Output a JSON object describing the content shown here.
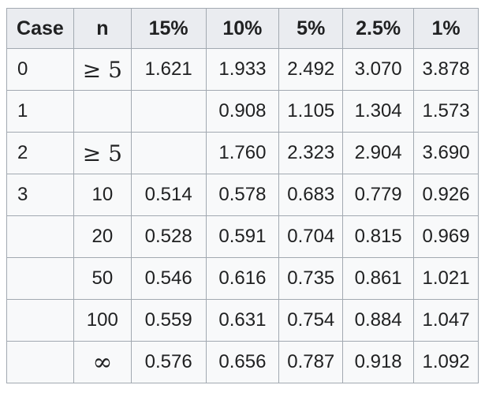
{
  "colors": {
    "border": "#a2a9b1",
    "header_bg": "#eaecf0",
    "cell_bg": "#f8f9fa",
    "text": "#202122",
    "page_bg": "#ffffff"
  },
  "table": {
    "columns": [
      "Case",
      "n",
      "15%",
      "10%",
      "5%",
      "2.5%",
      "1%"
    ],
    "rows": [
      [
        "0",
        "≥ 5",
        "1.621",
        "1.933",
        "2.492",
        "3.070",
        "3.878"
      ],
      [
        "1",
        "",
        "",
        "0.908",
        "1.105",
        "1.304",
        "1.573"
      ],
      [
        "2",
        "≥ 5",
        "",
        "1.760",
        "2.323",
        "2.904",
        "3.690"
      ],
      [
        "3",
        "10",
        "0.514",
        "0.578",
        "0.683",
        "0.779",
        "0.926"
      ],
      [
        "",
        "20",
        "0.528",
        "0.591",
        "0.704",
        "0.815",
        "0.969"
      ],
      [
        "",
        "50",
        "0.546",
        "0.616",
        "0.735",
        "0.861",
        "1.021"
      ],
      [
        "",
        "100",
        "0.559",
        "0.631",
        "0.754",
        "0.884",
        "1.047"
      ],
      [
        "",
        "∞",
        "0.576",
        "0.656",
        "0.787",
        "0.918",
        "1.092"
      ]
    ]
  }
}
